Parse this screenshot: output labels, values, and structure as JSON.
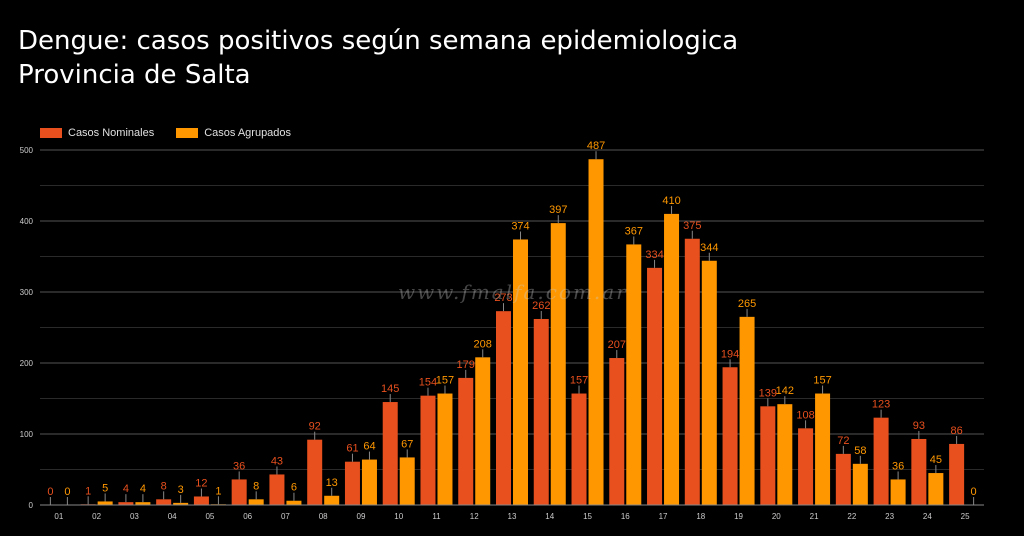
{
  "title_line1": "Dengue: casos positivos según semana epidemiologica",
  "title_line2": "Provincia de Salta",
  "watermark": "www.fmalfa.com.ar",
  "colors": {
    "nominal": "#e8501e",
    "agrupado": "#ff9800",
    "nominal_label": "#e8501e",
    "agrupado_label": "#ff9800",
    "grid": "#555555",
    "axis_text": "#cccccc"
  },
  "chart_data": {
    "type": "bar",
    "title": "Dengue: casos positivos según semana epidemiologica\nProvincia de Salta",
    "xlabel": "",
    "ylabel": "",
    "ylim": [
      0,
      500
    ],
    "yticks": [
      0,
      100,
      200,
      300,
      400,
      500
    ],
    "legend_position": "top-left",
    "categories": [
      "01",
      "02",
      "03",
      "04",
      "05",
      "06",
      "07",
      "08",
      "09",
      "10",
      "11",
      "12",
      "13",
      "14",
      "15",
      "16",
      "17",
      "18",
      "19",
      "20",
      "21",
      "22",
      "23",
      "24",
      "25"
    ],
    "series": [
      {
        "name": "Casos Nominales",
        "values": [
          0,
          1,
          4,
          8,
          12,
          36,
          43,
          92,
          61,
          145,
          154,
          179,
          273,
          262,
          157,
          207,
          334,
          375,
          194,
          139,
          108,
          72,
          123,
          93,
          86
        ]
      },
      {
        "name": "Casos Agrupados",
        "values": [
          0,
          5,
          4,
          3,
          1,
          8,
          6,
          13,
          64,
          67,
          157,
          208,
          374,
          397,
          487,
          367,
          410,
          344,
          265,
          142,
          157,
          58,
          36,
          45,
          0
        ]
      }
    ]
  }
}
